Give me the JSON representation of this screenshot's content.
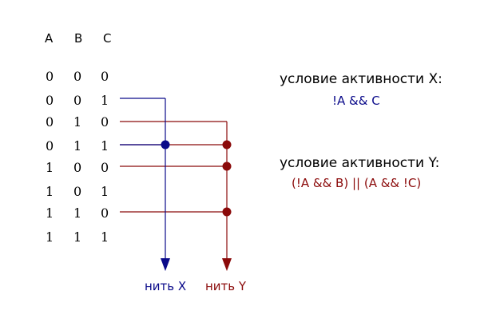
{
  "colors": {
    "thread_x": "#0a0a8a",
    "thread_y": "#8b0a0a",
    "text": "#000000"
  },
  "table": {
    "headers": [
      "A",
      "B",
      "C"
    ],
    "rows": [
      [
        "0",
        "0",
        "0"
      ],
      [
        "0",
        "0",
        "1"
      ],
      [
        "0",
        "1",
        "0"
      ],
      [
        "0",
        "1",
        "1"
      ],
      [
        "1",
        "0",
        "0"
      ],
      [
        "1",
        "0",
        "1"
      ],
      [
        "1",
        "1",
        "0"
      ],
      [
        "1",
        "1",
        "1"
      ]
    ]
  },
  "threads": {
    "x": {
      "label": "нить X",
      "active_rows": [
        1,
        3
      ],
      "junction_rows": [
        3
      ]
    },
    "y": {
      "label": "нить Y",
      "active_rows": [
        2,
        3,
        4,
        6
      ],
      "junction_rows": [
        3,
        4,
        6
      ]
    }
  },
  "conditions": {
    "x": {
      "title": "условие активности X:",
      "expression": "!A && C"
    },
    "y": {
      "title": "условие активности Y:",
      "expression": "(!A && B) || (A && !C)"
    }
  }
}
